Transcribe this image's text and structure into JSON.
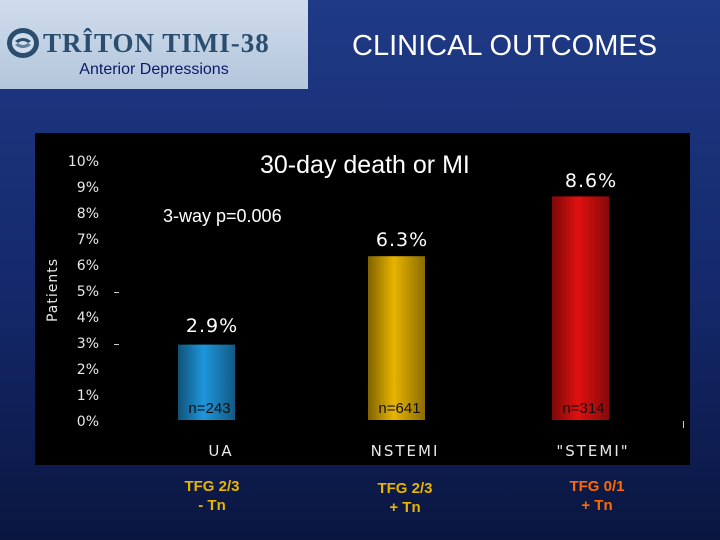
{
  "header": {
    "logo_text": "TRÎTON TIMI-38",
    "subtitle": "Anterior Depressions",
    "slide_title": "CLINICAL OUTCOMES",
    "logo_icon": "triton-emblem-icon"
  },
  "chart_data": {
    "type": "bar",
    "title": "30-day death or MI",
    "annotation": "3-way p=0.006",
    "ylabel": "Patients",
    "ylim": [
      0,
      10
    ],
    "yticks": [
      "0%",
      "1%",
      "2%",
      "3%",
      "4%",
      "5%",
      "6%",
      "7%",
      "8%",
      "9%",
      "10%"
    ],
    "categories": [
      "UA",
      "NSTEMI",
      "\"STEMI\""
    ],
    "values": [
      2.9,
      6.3,
      8.6
    ],
    "value_labels": [
      "2.9%",
      "6.3%",
      "8.6%"
    ],
    "n_labels": [
      "n=243",
      "n=641",
      "n=314"
    ],
    "bar_colors": [
      "#1e96dc",
      "#e8b400",
      "#e01010"
    ],
    "grid": false,
    "legend": "none"
  },
  "footer": {
    "groups": [
      {
        "line1": "TFG 2/3",
        "line2": "- Tn",
        "color": "#e8b400"
      },
      {
        "line1": "TFG 2/3",
        "line2": "+ Tn",
        "color": "#e8b400"
      },
      {
        "line1": "TFG 0/1",
        "line2": "+ Tn",
        "color": "#ff6a00"
      }
    ]
  }
}
